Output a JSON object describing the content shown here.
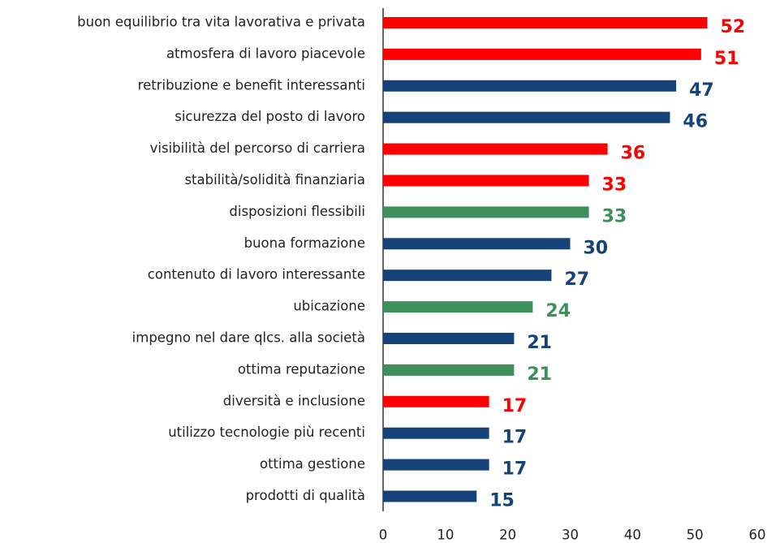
{
  "chart_data": {
    "type": "barh",
    "categories": [
      "buon equilibrio tra vita lavorativa e privata",
      "atmosfera di lavoro piacevole",
      "retribuzione e benefit interessanti ",
      "sicurezza del posto di lavoro",
      "visibilità del percorso di carriera",
      "stabilità/solidità finanziaria",
      "disposizioni flessibili",
      "buona formazione",
      "contenuto di lavoro interessante",
      "ubicazione",
      "impegno nel dare qlcs. alla società",
      "ottima reputazione",
      "diversità e inclusione ",
      "utilizzo tecnologie più recenti",
      "ottima gestione",
      "prodotti di qualità"
    ],
    "values": [
      52,
      51,
      47,
      46,
      36,
      33,
      33,
      30,
      27,
      24,
      21,
      21,
      17,
      17,
      17,
      15
    ],
    "colors": [
      "#ff0000",
      "#ff0000",
      "#16427a",
      "#16427a",
      "#ff0000",
      "#ff0000",
      "#3f8f5c",
      "#16427a",
      "#16427a",
      "#3f8f5c",
      "#16427a",
      "#3f8f5c",
      "#ff0000",
      "#16427a",
      "#16427a",
      "#16427a"
    ],
    "xlim": [
      0,
      60
    ],
    "xticks": [
      0,
      10,
      20,
      30,
      40,
      50,
      60
    ]
  }
}
